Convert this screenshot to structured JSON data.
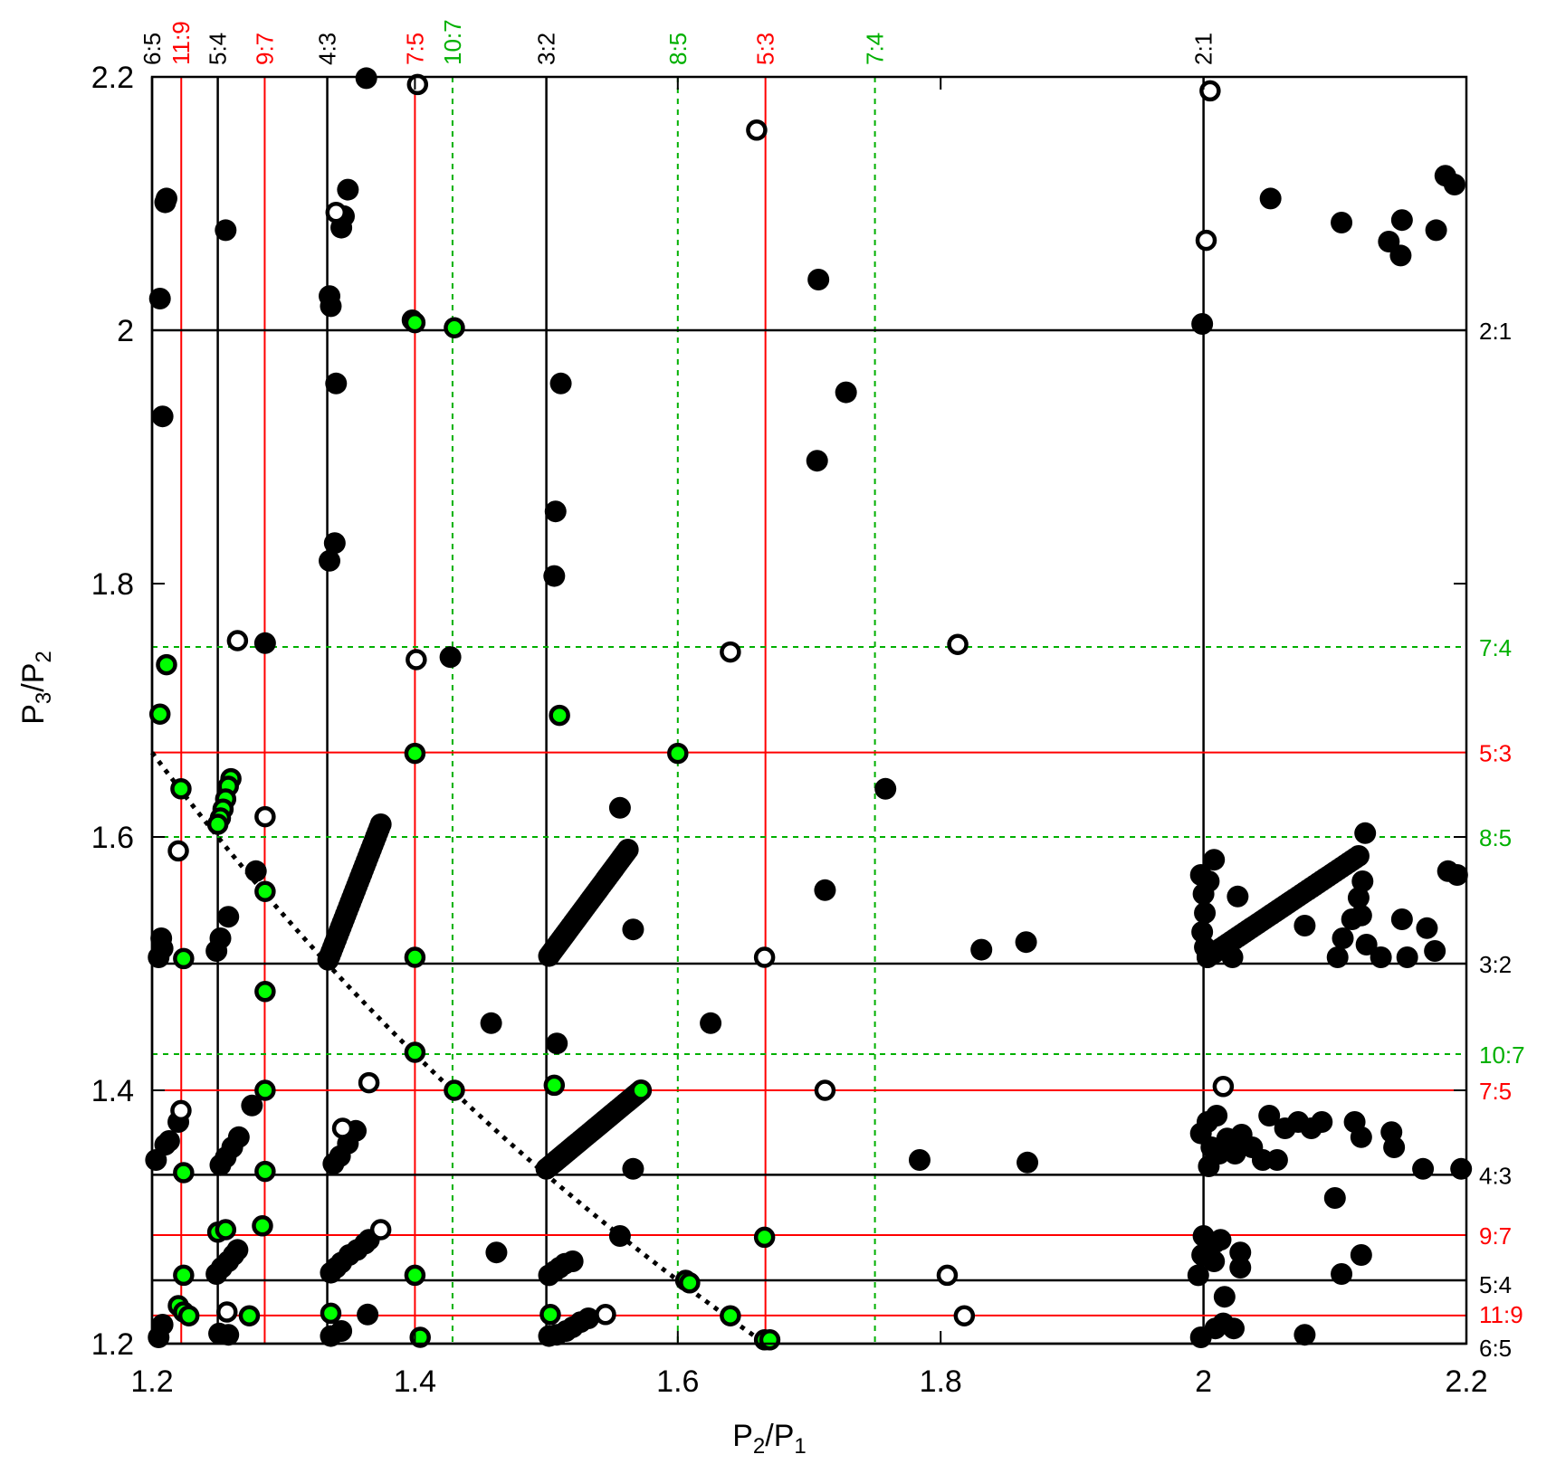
{
  "chart_data": {
    "type": "scatter",
    "xlabel": "P2/P1",
    "ylabel": "P3/P2",
    "xlim": [
      1.2,
      2.2
    ],
    "ylim": [
      1.2,
      2.2
    ],
    "x_ticks": [
      "1.2",
      "1.4",
      "1.6",
      "1.8",
      "2",
      "2.2"
    ],
    "y_ticks": [
      "1.2",
      "1.4",
      "1.6",
      "1.8",
      "2",
      "2.2"
    ],
    "colors": {
      "first_order": "#000000",
      "second_order": "#ff0000",
      "third_order": "#00b000",
      "marker_green": "#00ff00"
    },
    "vertical_resonances": [
      {
        "label": "6:5",
        "value": 1.2,
        "order": "first"
      },
      {
        "label": "11:9",
        "value": 1.2222,
        "order": "second"
      },
      {
        "label": "5:4",
        "value": 1.25,
        "order": "first"
      },
      {
        "label": "9:7",
        "value": 1.2857,
        "order": "second"
      },
      {
        "label": "4:3",
        "value": 1.3333,
        "order": "first"
      },
      {
        "label": "7:5",
        "value": 1.4,
        "order": "second"
      },
      {
        "label": "10:7",
        "value": 1.4286,
        "order": "third"
      },
      {
        "label": "3:2",
        "value": 1.5,
        "order": "first"
      },
      {
        "label": "8:5",
        "value": 1.6,
        "order": "third"
      },
      {
        "label": "5:3",
        "value": 1.6667,
        "order": "second"
      },
      {
        "label": "7:4",
        "value": 1.75,
        "order": "third"
      },
      {
        "label": "2:1",
        "value": 2.0,
        "order": "first"
      }
    ],
    "horizontal_resonances": [
      {
        "label": "2:1",
        "value": 2.0,
        "order": "first"
      },
      {
        "label": "7:4",
        "value": 1.75,
        "order": "third"
      },
      {
        "label": "5:3",
        "value": 1.6667,
        "order": "second"
      },
      {
        "label": "8:5",
        "value": 1.6,
        "order": "third"
      },
      {
        "label": "3:2",
        "value": 1.5,
        "order": "first"
      },
      {
        "label": "10:7",
        "value": 1.4286,
        "order": "third"
      },
      {
        "label": "7:5",
        "value": 1.4,
        "order": "second"
      },
      {
        "label": "4:3",
        "value": 1.3333,
        "order": "first"
      },
      {
        "label": "9:7",
        "value": 1.2857,
        "order": "second"
      },
      {
        "label": "5:4",
        "value": 1.25,
        "order": "first"
      },
      {
        "label": "11:9",
        "value": 1.2222,
        "order": "second"
      },
      {
        "label": "6:5",
        "value": 1.2,
        "order": "first"
      }
    ],
    "dotted_curve": {
      "description": "P3/P1 = 2",
      "x_range": [
        1.2,
        1.667
      ]
    },
    "filled_points": [
      [
        1.363,
        2.199
      ],
      [
        1.211,
        2.104
      ],
      [
        1.21,
        2.101
      ],
      [
        1.256,
        2.079
      ],
      [
        1.349,
        2.111
      ],
      [
        1.346,
        2.09
      ],
      [
        1.344,
        2.081
      ],
      [
        1.206,
        2.025
      ],
      [
        1.335,
        2.027
      ],
      [
        1.336,
        2.019
      ],
      [
        1.707,
        2.04
      ],
      [
        1.999,
        2.005
      ],
      [
        2.051,
        2.104
      ],
      [
        2.105,
        2.085
      ],
      [
        2.141,
        2.07
      ],
      [
        2.151,
        2.087
      ],
      [
        2.15,
        2.059
      ],
      [
        2.177,
        2.079
      ],
      [
        2.184,
        2.122
      ],
      [
        2.191,
        2.115
      ],
      [
        1.208,
        1.932
      ],
      [
        1.34,
        1.958
      ],
      [
        1.511,
        1.958
      ],
      [
        1.706,
        1.897
      ],
      [
        1.728,
        1.951
      ],
      [
        1.339,
        1.832
      ],
      [
        1.335,
        1.818
      ],
      [
        1.507,
        1.857
      ],
      [
        1.506,
        1.806
      ],
      [
        1.286,
        1.753
      ],
      [
        1.427,
        1.742
      ],
      [
        1.556,
        1.623
      ],
      [
        1.758,
        1.638
      ],
      [
        1.279,
        1.573
      ],
      [
        1.258,
        1.537
      ],
      [
        1.252,
        1.52
      ],
      [
        1.249,
        1.51
      ],
      [
        1.207,
        1.52
      ],
      [
        1.208,
        1.512
      ],
      [
        1.205,
        1.505
      ],
      [
        1.566,
        1.527
      ],
      [
        1.712,
        1.558
      ],
      [
        1.831,
        1.511
      ],
      [
        1.865,
        1.517
      ],
      [
        1.458,
        1.453
      ],
      [
        1.625,
        1.453
      ],
      [
        1.508,
        1.437
      ],
      [
        1.998,
        1.57
      ],
      [
        2.0,
        1.555
      ],
      [
        2.001,
        1.54
      ],
      [
        1.999,
        1.525
      ],
      [
        2.001,
        1.513
      ],
      [
        2.008,
        1.582
      ],
      [
        2.004,
        1.565
      ],
      [
        2.003,
        1.505
      ],
      [
        2.022,
        1.505
      ],
      [
        2.026,
        1.553
      ],
      [
        2.077,
        1.53
      ],
      [
        2.123,
        1.603
      ],
      [
        2.121,
        1.565
      ],
      [
        2.118,
        1.552
      ],
      [
        2.12,
        1.538
      ],
      [
        2.113,
        1.535
      ],
      [
        2.106,
        1.52
      ],
      [
        2.102,
        1.505
      ],
      [
        2.124,
        1.515
      ],
      [
        2.135,
        1.505
      ],
      [
        2.151,
        1.535
      ],
      [
        2.155,
        1.505
      ],
      [
        2.17,
        1.528
      ],
      [
        2.176,
        1.51
      ],
      [
        2.186,
        1.573
      ],
      [
        2.193,
        1.57
      ],
      [
        1.203,
        1.345
      ],
      [
        1.21,
        1.357
      ],
      [
        1.213,
        1.36
      ],
      [
        1.22,
        1.375
      ],
      [
        1.252,
        1.341
      ],
      [
        1.256,
        1.347
      ],
      [
        1.261,
        1.355
      ],
      [
        1.266,
        1.363
      ],
      [
        1.276,
        1.388
      ],
      [
        1.338,
        1.342
      ],
      [
        1.343,
        1.348
      ],
      [
        1.349,
        1.358
      ],
      [
        1.355,
        1.368
      ],
      [
        1.566,
        1.338
      ],
      [
        1.784,
        1.345
      ],
      [
        1.866,
        1.343
      ],
      [
        1.998,
        1.366
      ],
      [
        2.003,
        1.375
      ],
      [
        2.01,
        1.38
      ],
      [
        2.006,
        1.355
      ],
      [
        2.004,
        1.34
      ],
      [
        2.012,
        1.35
      ],
      [
        2.018,
        1.362
      ],
      [
        2.024,
        1.35
      ],
      [
        2.029,
        1.365
      ],
      [
        2.037,
        1.355
      ],
      [
        2.045,
        1.345
      ],
      [
        2.05,
        1.38
      ],
      [
        2.056,
        1.345
      ],
      [
        2.062,
        1.37
      ],
      [
        2.072,
        1.375
      ],
      [
        2.082,
        1.37
      ],
      [
        2.09,
        1.375
      ],
      [
        2.1,
        1.315
      ],
      [
        2.115,
        1.375
      ],
      [
        2.12,
        1.363
      ],
      [
        2.143,
        1.367
      ],
      [
        2.145,
        1.355
      ],
      [
        2.167,
        1.338
      ],
      [
        2.196,
        1.338
      ],
      [
        1.556,
        1.285
      ],
      [
        1.462,
        1.272
      ],
      [
        1.996,
        1.254
      ],
      [
        1.999,
        1.27
      ],
      [
        2.0,
        1.285
      ],
      [
        2.009,
        1.28
      ],
      [
        2.013,
        1.282
      ],
      [
        2.008,
        1.265
      ],
      [
        2.016,
        1.237
      ],
      [
        2.028,
        1.26
      ],
      [
        2.028,
        1.272
      ],
      [
        2.105,
        1.255
      ],
      [
        2.12,
        1.27
      ],
      [
        1.249,
        1.255
      ],
      [
        1.253,
        1.26
      ],
      [
        1.258,
        1.265
      ],
      [
        1.262,
        1.27
      ],
      [
        1.265,
        1.274
      ],
      [
        1.336,
        1.256
      ],
      [
        1.34,
        1.26
      ],
      [
        1.344,
        1.264
      ],
      [
        1.35,
        1.27
      ],
      [
        1.356,
        1.274
      ],
      [
        1.362,
        1.279
      ],
      [
        1.365,
        1.282
      ],
      [
        1.502,
        1.254
      ],
      [
        1.506,
        1.257
      ],
      [
        1.51,
        1.26
      ],
      [
        1.514,
        1.263
      ],
      [
        1.52,
        1.265
      ],
      [
        1.208,
        1.215
      ],
      [
        1.205,
        1.205
      ],
      [
        1.251,
        1.208
      ],
      [
        1.258,
        1.207
      ],
      [
        1.336,
        1.206
      ],
      [
        1.344,
        1.21
      ],
      [
        1.364,
        1.223
      ],
      [
        1.502,
        1.206
      ],
      [
        1.508,
        1.207
      ],
      [
        1.515,
        1.21
      ],
      [
        1.52,
        1.213
      ],
      [
        1.526,
        1.217
      ],
      [
        1.532,
        1.22
      ],
      [
        1.998,
        1.205
      ],
      [
        2.009,
        1.212
      ],
      [
        2.015,
        1.216
      ],
      [
        2.023,
        1.212
      ],
      [
        2.077,
        1.207
      ]
    ],
    "green_points": [
      [
        1.398,
        2.008
      ],
      [
        1.4,
        2.006
      ],
      [
        1.43,
        2.002
      ],
      [
        1.211,
        1.736
      ],
      [
        1.206,
        1.697
      ],
      [
        1.4,
        1.666
      ],
      [
        1.51,
        1.696
      ],
      [
        1.6,
        1.666
      ],
      [
        1.222,
        1.638
      ],
      [
        1.26,
        1.646
      ],
      [
        1.258,
        1.64
      ],
      [
        1.256,
        1.63
      ],
      [
        1.254,
        1.622
      ],
      [
        1.252,
        1.615
      ],
      [
        1.25,
        1.61
      ],
      [
        1.286,
        1.557
      ],
      [
        1.224,
        1.504
      ],
      [
        1.4,
        1.505
      ],
      [
        1.286,
        1.478
      ],
      [
        1.4,
        1.43
      ],
      [
        1.43,
        1.4
      ],
      [
        1.506,
        1.404
      ],
      [
        1.572,
        1.4
      ],
      [
        1.286,
        1.4
      ],
      [
        1.224,
        1.335
      ],
      [
        1.286,
        1.336
      ],
      [
        1.284,
        1.293
      ],
      [
        1.25,
        1.288
      ],
      [
        1.256,
        1.29
      ],
      [
        1.666,
        1.284
      ],
      [
        1.224,
        1.254
      ],
      [
        1.4,
        1.254
      ],
      [
        1.606,
        1.25
      ],
      [
        1.609,
        1.248
      ],
      [
        1.22,
        1.23
      ],
      [
        1.224,
        1.225
      ],
      [
        1.228,
        1.222
      ],
      [
        1.274,
        1.222
      ],
      [
        1.336,
        1.224
      ],
      [
        1.503,
        1.223
      ],
      [
        1.64,
        1.222
      ],
      [
        1.404,
        1.205
      ],
      [
        1.666,
        1.203
      ],
      [
        1.67,
        1.203
      ]
    ],
    "open_points": [
      [
        1.402,
        2.194
      ],
      [
        1.66,
        2.158
      ],
      [
        2.005,
        2.189
      ],
      [
        1.34,
        2.093
      ],
      [
        2.002,
        2.071
      ],
      [
        1.265,
        1.755
      ],
      [
        1.401,
        1.74
      ],
      [
        1.64,
        1.746
      ],
      [
        1.813,
        1.752
      ],
      [
        1.22,
        1.589
      ],
      [
        1.286,
        1.616
      ],
      [
        1.666,
        1.505
      ],
      [
        1.222,
        1.384
      ],
      [
        1.365,
        1.406
      ],
      [
        1.712,
        1.4
      ],
      [
        2.015,
        1.403
      ],
      [
        1.345,
        1.37
      ],
      [
        1.374,
        1.29
      ],
      [
        1.805,
        1.254
      ],
      [
        1.818,
        1.222
      ],
      [
        1.257,
        1.225
      ],
      [
        1.545,
        1.223
      ]
    ],
    "dense_tracks": [
      {
        "from": [
          1.334,
          1.503
        ],
        "to": [
          1.374,
          1.61
        ],
        "n": 34
      },
      {
        "from": [
          1.502,
          1.506
        ],
        "to": [
          1.562,
          1.59
        ],
        "n": 40
      },
      {
        "from": [
          2.003,
          1.505
        ],
        "to": [
          2.118,
          1.585
        ],
        "n": 46
      },
      {
        "from": [
          1.5,
          1.338
        ],
        "to": [
          1.572,
          1.4
        ],
        "n": 42
      }
    ]
  }
}
